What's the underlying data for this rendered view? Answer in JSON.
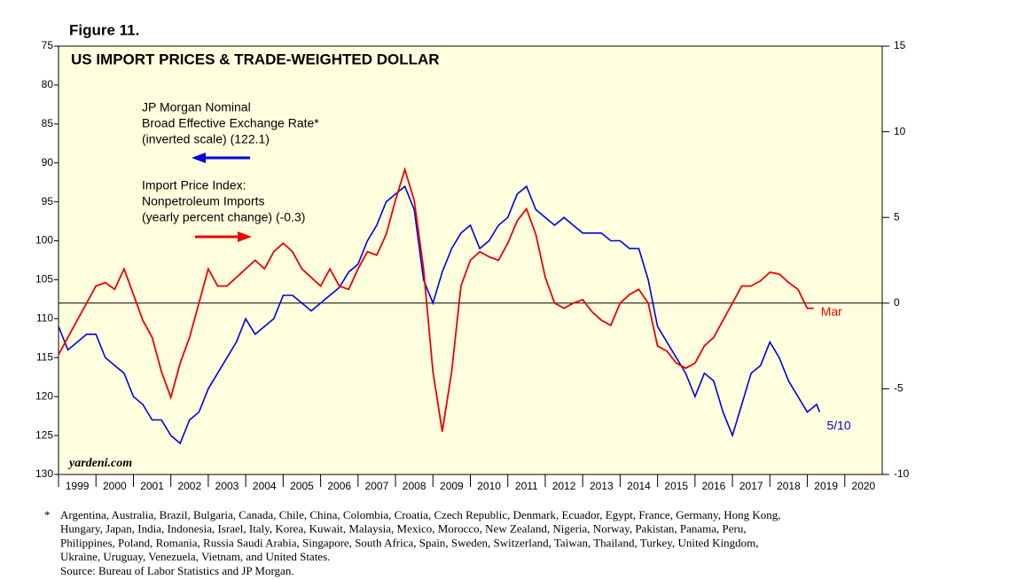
{
  "chart_data": {
    "type": "line",
    "figure_label": "Figure 11.",
    "title": "US IMPORT PRICES & TRADE-WEIGHTED DOLLAR",
    "watermark": "yardeni.com",
    "xlim": [
      1999,
      2021
    ],
    "xticks": [
      1999,
      2000,
      2001,
      2002,
      2003,
      2004,
      2005,
      2006,
      2007,
      2008,
      2009,
      2010,
      2011,
      2012,
      2013,
      2014,
      2015,
      2016,
      2017,
      2018,
      2019,
      2020
    ],
    "ylim": [
      75,
      130
    ],
    "y_inverted": true,
    "yticks": [
      75,
      80,
      85,
      90,
      95,
      100,
      105,
      110,
      115,
      120,
      125,
      130
    ],
    "y2lim": [
      -10,
      15
    ],
    "y2ticks": [
      -10,
      -5,
      0,
      5,
      10,
      15
    ],
    "reference_line_y2": 0,
    "series": [
      {
        "name": "JP Morgan Nominal Broad Effective Exchange Rate* (inverted scale) (122.1)",
        "legend_lines": [
          "JP Morgan Nominal",
          "Broad Effective Exchange Rate*",
          "(inverted scale) (122.1)"
        ],
        "color": "#0000e0",
        "axis": "y",
        "end_label": "5/10",
        "x": [
          1999.0,
          1999.25,
          1999.5,
          1999.75,
          2000.0,
          2000.25,
          2000.5,
          2000.75,
          2001.0,
          2001.25,
          2001.5,
          2001.75,
          2002.0,
          2002.25,
          2002.5,
          2002.75,
          2003.0,
          2003.25,
          2003.5,
          2003.75,
          2004.0,
          2004.25,
          2004.5,
          2004.75,
          2005.0,
          2005.25,
          2005.5,
          2005.75,
          2006.0,
          2006.25,
          2006.5,
          2006.75,
          2007.0,
          2007.25,
          2007.5,
          2007.75,
          2008.0,
          2008.25,
          2008.5,
          2008.75,
          2009.0,
          2009.25,
          2009.5,
          2009.75,
          2010.0,
          2010.25,
          2010.5,
          2010.75,
          2011.0,
          2011.25,
          2011.5,
          2011.75,
          2012.0,
          2012.25,
          2012.5,
          2012.75,
          2013.0,
          2013.25,
          2013.5,
          2013.75,
          2014.0,
          2014.25,
          2014.5,
          2014.75,
          2015.0,
          2015.25,
          2015.5,
          2015.75,
          2016.0,
          2016.25,
          2016.5,
          2016.75,
          2017.0,
          2017.25,
          2017.5,
          2017.75,
          2018.0,
          2018.25,
          2018.5,
          2018.75,
          2019.0,
          2019.25,
          2019.33
        ],
        "values": [
          111,
          114,
          113,
          112,
          112,
          115,
          116,
          117,
          120,
          121,
          123,
          123,
          125,
          126,
          123,
          122,
          119,
          117,
          115,
          113,
          110,
          112,
          111,
          110,
          107,
          107,
          108,
          109,
          108,
          107,
          106,
          104,
          103,
          100,
          98,
          95,
          94,
          93,
          96,
          105,
          108,
          104,
          101,
          99,
          98,
          101,
          100,
          98,
          97,
          94,
          93,
          96,
          97,
          98,
          97,
          98,
          99,
          99,
          99,
          100,
          100,
          101,
          101,
          105,
          111,
          113,
          115,
          117,
          120,
          117,
          118,
          122,
          125,
          121,
          117,
          116,
          113,
          115,
          118,
          120,
          122,
          121,
          122
        ]
      },
      {
        "name": "Import Price Index: Nonpetroleum Imports (yearly percent change) (-0.3)",
        "legend_lines": [
          "Import Price Index:",
          "Nonpetroleum Imports",
          "(yearly percent change) (-0.3)"
        ],
        "color": "#ee0000",
        "axis": "y2",
        "end_label": "Mar",
        "x": [
          1999.0,
          1999.25,
          1999.5,
          1999.75,
          2000.0,
          2000.25,
          2000.5,
          2000.75,
          2001.0,
          2001.25,
          2001.5,
          2001.75,
          2002.0,
          2002.25,
          2002.5,
          2002.75,
          2003.0,
          2003.25,
          2003.5,
          2003.75,
          2004.0,
          2004.25,
          2004.5,
          2004.75,
          2005.0,
          2005.25,
          2005.5,
          2005.75,
          2006.0,
          2006.25,
          2006.5,
          2006.75,
          2007.0,
          2007.25,
          2007.5,
          2007.75,
          2008.0,
          2008.25,
          2008.5,
          2008.75,
          2009.0,
          2009.25,
          2009.5,
          2009.75,
          2010.0,
          2010.25,
          2010.5,
          2010.75,
          2011.0,
          2011.25,
          2011.5,
          2011.75,
          2012.0,
          2012.25,
          2012.5,
          2012.75,
          2013.0,
          2013.25,
          2013.5,
          2013.75,
          2014.0,
          2014.25,
          2014.5,
          2014.75,
          2015.0,
          2015.25,
          2015.5,
          2015.75,
          2016.0,
          2016.25,
          2016.5,
          2016.75,
          2017.0,
          2017.25,
          2017.5,
          2017.75,
          2018.0,
          2018.25,
          2018.5,
          2018.75,
          2019.0,
          2019.17
        ],
        "values": [
          -3,
          -2,
          -1,
          0,
          1,
          1.2,
          0.8,
          2,
          0.5,
          -1,
          -2,
          -4,
          -5.5,
          -3.5,
          -2,
          0,
          2,
          1,
          1,
          1.5,
          2,
          2.5,
          2,
          3,
          3.5,
          3,
          2,
          1.5,
          1,
          2,
          1,
          0.8,
          2,
          3,
          2.8,
          4,
          6,
          7.8,
          6,
          2,
          -4,
          -7.5,
          -4,
          1,
          2.5,
          3,
          2.7,
          2.5,
          3.5,
          4.8,
          5.5,
          4,
          1.5,
          0,
          -0.3,
          0,
          0.2,
          -0.5,
          -1,
          -1.3,
          0,
          0.5,
          0.8,
          0,
          -2.5,
          -2.8,
          -3.5,
          -3.8,
          -3.5,
          -2.5,
          -2,
          -1,
          0,
          1,
          1,
          1.3,
          1.8,
          1.7,
          1.2,
          0.8,
          -0.3,
          -0.3
        ]
      }
    ],
    "footnote_marker": "*",
    "footnote_lines": [
      "Argentina, Australia, Brazil, Bulgaria, Canada, Chile, China, Colombia, Croatia, Czech Republic, Denmark, Ecuador, Egypt, France, Germany, Hong Kong,",
      "Hungary, Japan, India, Indonesia, Israel, Italy, Korea, Kuwait, Malaysia, Mexico, Morocco, New Zealand, Nigeria, Norway, Pakistan, Panama, Peru,",
      "Philippines, Poland, Romania, Russia Saudi Arabia, Singapore, South Africa, Spain, Sweden, Switzerland, Taiwan, Thailand, Turkey, United Kingdom,",
      "Ukraine, Uruguay, Venezuela, Vietnam, and United States."
    ],
    "source": "Source: Bureau of Labor Statistics and JP Morgan."
  }
}
